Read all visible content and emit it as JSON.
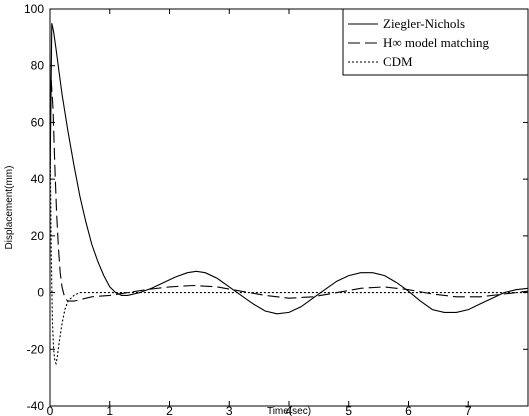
{
  "chart_data": {
    "type": "line",
    "title": "",
    "xlabel": "Time(sec)",
    "ylabel": "Displacement(mm)",
    "xlim": [
      0,
      8
    ],
    "ylim": [
      -40,
      100
    ],
    "x_ticks": [
      0,
      1,
      2,
      3,
      4,
      5,
      6,
      7
    ],
    "y_ticks": [
      -40,
      -20,
      0,
      20,
      40,
      60,
      80,
      100
    ],
    "grid": false,
    "legend_position": "top-right",
    "legend": [
      "Ziegler-Nichols",
      "H∞ model matching",
      "CDM"
    ],
    "series": [
      {
        "name": "Ziegler-Nichols",
        "style": "solid",
        "x": [
          0,
          0.03,
          0.06,
          0.1,
          0.15,
          0.2,
          0.3,
          0.4,
          0.5,
          0.6,
          0.7,
          0.8,
          0.9,
          1.0,
          1.1,
          1.2,
          1.3,
          1.5,
          1.7,
          1.9,
          2.1,
          2.3,
          2.45,
          2.6,
          2.8,
          3.0,
          3.2,
          3.4,
          3.6,
          3.8,
          4.0,
          4.2,
          4.4,
          4.6,
          4.8,
          5.0,
          5.2,
          5.4,
          5.6,
          5.8,
          6.0,
          6.2,
          6.4,
          6.6,
          6.8,
          7.0,
          7.2,
          7.4,
          7.6,
          7.8,
          8.0
        ],
        "values": [
          40,
          95,
          92,
          86,
          78,
          70,
          57,
          45,
          34,
          25,
          17,
          11,
          6,
          2,
          0,
          -1,
          -1,
          0,
          1.5,
          3.5,
          5.5,
          7,
          7.5,
          7,
          5,
          2,
          -1,
          -4,
          -6.5,
          -7.5,
          -7,
          -5,
          -2,
          1,
          4,
          6,
          7,
          7,
          6,
          3.5,
          0.5,
          -3,
          -6,
          -7,
          -7,
          -6,
          -4,
          -2,
          0,
          1,
          1.5
        ]
      },
      {
        "name": "H∞ model matching",
        "style": "dashed",
        "x": [
          0,
          0.02,
          0.05,
          0.08,
          0.11,
          0.14,
          0.17,
          0.2,
          0.25,
          0.3,
          0.4,
          0.5,
          0.7,
          1.0,
          1.3,
          1.6,
          2.0,
          2.4,
          2.8,
          3.2,
          3.6,
          4.0,
          4.4,
          4.8,
          5.2,
          5.6,
          6.0,
          6.4,
          6.8,
          7.2,
          7.6,
          8.0
        ],
        "values": [
          45,
          75,
          65,
          45,
          28,
          16,
          7,
          2,
          -2,
          -3,
          -3,
          -2.5,
          -1.5,
          -1,
          0,
          1,
          2,
          2.5,
          2,
          0.5,
          -1,
          -2,
          -1.5,
          0,
          1.5,
          2,
          1,
          -0.5,
          -1.5,
          -1.5,
          -0.5,
          0.5
        ]
      },
      {
        "name": "CDM",
        "style": "dotted",
        "x": [
          0,
          0.02,
          0.04,
          0.06,
          0.08,
          0.1,
          0.12,
          0.15,
          0.2,
          0.25,
          0.3,
          0.4,
          0.5,
          0.7,
          1.0,
          1.5,
          2.0,
          3.0,
          4.0,
          5.0,
          6.0,
          7.0,
          8.0
        ],
        "values": [
          60,
          15,
          -10,
          -20,
          -24,
          -25,
          -23,
          -18,
          -11,
          -6,
          -3,
          -1,
          0,
          0,
          0,
          0,
          0,
          0,
          0,
          0,
          0,
          0,
          0
        ]
      }
    ]
  }
}
